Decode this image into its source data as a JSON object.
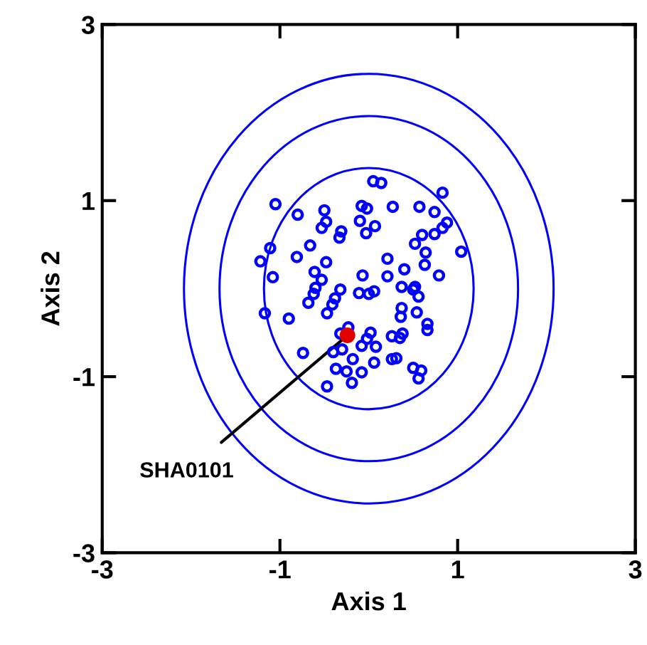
{
  "chart_data": {
    "type": "scatter",
    "xlabel": "Axis 1",
    "ylabel": "Axis 2",
    "xlim": [
      -3,
      3
    ],
    "ylim": [
      -3,
      3
    ],
    "xticks": [
      -3,
      -1,
      1,
      3
    ],
    "yticks": [
      -3,
      -1,
      1,
      3
    ],
    "grid": false,
    "legend": false,
    "annotations": [
      {
        "text": "SHA0101",
        "x": -0.24,
        "y": -0.53
      }
    ],
    "series": [
      {
        "marker": "circle",
        "color": "#0000ff",
        "x": [
          -1.05,
          -0.8,
          -0.5,
          -0.53,
          -0.48,
          -0.33,
          -0.31,
          -0.08,
          -0.02,
          -0.1,
          -0.03,
          0.07,
          0.05,
          0.14,
          0.27,
          0.57,
          0.74,
          0.83,
          0.88,
          0.83,
          0.74,
          0.6,
          0.52,
          0.64,
          0.63,
          0.79,
          1.04,
          0.21,
          0.4,
          0.21,
          -0.07,
          -0.11,
          0.0,
          0.06,
          0.37,
          0.52,
          0.56,
          0.37,
          0.36,
          0.54,
          0.66,
          0.66,
          0.38,
          0.26,
          0.35,
          0.26,
          0.31,
          0.5,
          0.59,
          0.56,
          0.06,
          -0.08,
          -0.19,
          -0.25,
          -0.37,
          -0.47,
          -0.18,
          -0.4,
          -0.3,
          -0.08,
          0.08,
          -0.02,
          0.02,
          -0.32,
          -0.23,
          -0.74,
          -0.9,
          -1.17,
          -0.47,
          -0.41,
          -0.38,
          -0.32,
          -0.68,
          -0.62,
          -0.6,
          -0.53,
          -0.61,
          -0.48,
          -0.81,
          -0.66,
          -1.08,
          -1.22,
          -1.11,
          0.5
        ],
        "values": [
          0.96,
          0.84,
          0.89,
          0.69,
          0.76,
          0.58,
          0.65,
          0.94,
          0.91,
          0.77,
          0.63,
          0.71,
          1.22,
          1.2,
          0.93,
          0.93,
          0.87,
          1.09,
          0.75,
          0.69,
          0.62,
          0.61,
          0.51,
          0.41,
          0.27,
          0.15,
          0.42,
          0.34,
          0.22,
          0.14,
          0.15,
          -0.05,
          -0.06,
          -0.03,
          0.02,
          0.02,
          -0.09,
          -0.22,
          -0.32,
          -0.27,
          -0.4,
          -0.47,
          -0.51,
          -0.54,
          -0.56,
          -0.8,
          -0.79,
          -0.9,
          -0.93,
          -1.02,
          -0.84,
          -0.95,
          -1.07,
          -0.94,
          -0.91,
          -1.11,
          -0.8,
          -0.72,
          -0.69,
          -0.65,
          -0.66,
          -0.57,
          -0.5,
          -0.51,
          -0.44,
          -0.73,
          -0.34,
          -0.28,
          -0.28,
          -0.18,
          -0.11,
          -0.01,
          -0.16,
          -0.06,
          0.01,
          0.1,
          0.19,
          0.3,
          0.36,
          0.49,
          0.13,
          0.31,
          0.46,
          -0.01
        ]
      },
      {
        "marker": "circle",
        "color": "#e00000",
        "x": [
          -0.24
        ],
        "values": [
          -0.53
        ]
      }
    ]
  }
}
